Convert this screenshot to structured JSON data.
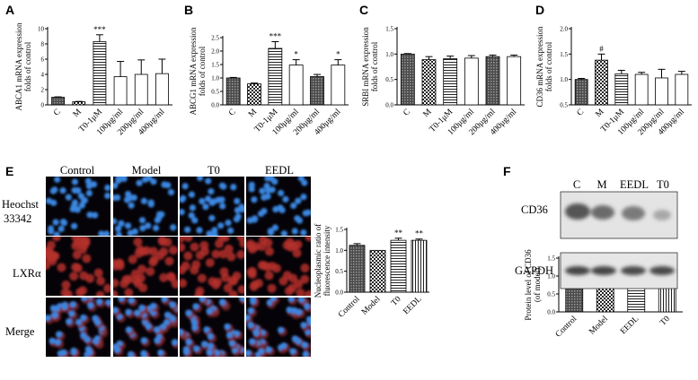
{
  "panels": {
    "A": "A",
    "B": "B",
    "C": "C",
    "D": "D",
    "E": "E",
    "F": "F"
  },
  "microscopy": {
    "columns": [
      "Control",
      "Model",
      "T0",
      "EEDL"
    ],
    "rows": [
      "Heochst\n33342",
      "LXRα",
      "Merge"
    ]
  },
  "western": {
    "lanes": [
      "C",
      "M",
      "EEDL",
      "T0"
    ],
    "bands": [
      "CD36",
      "GAPDH"
    ]
  },
  "chart_data": [
    {
      "id": "A",
      "type": "bar",
      "ylabel": [
        "ABCA1 mRNA expression",
        "folds of control"
      ],
      "categories": [
        "C",
        "M",
        "T0-1μM",
        "100μg/ml",
        "200μg/ml",
        "400μg/ml"
      ],
      "values": [
        1.0,
        0.4,
        8.3,
        3.7,
        4.0,
        4.1
      ],
      "errors": [
        0.05,
        0.05,
        0.9,
        2.0,
        1.9,
        1.9
      ],
      "annotations": [
        "",
        "",
        "***",
        "",
        "",
        ""
      ],
      "ylim": [
        0,
        10
      ],
      "yticks": [
        0,
        2,
        4,
        6,
        8,
        10
      ],
      "patterns": [
        "dense",
        "check",
        "hline",
        "white",
        "white",
        "white"
      ]
    },
    {
      "id": "B",
      "type": "bar",
      "ylabel": [
        "ABCG1 mRNA expression",
        "folds of control"
      ],
      "categories": [
        "C",
        "M",
        "T0-1μM",
        "100μg/ml",
        "200μg/ml",
        "400μg/ml"
      ],
      "values": [
        1.0,
        0.78,
        2.1,
        1.48,
        1.05,
        1.48
      ],
      "errors": [
        0.02,
        0.03,
        0.25,
        0.2,
        0.08,
        0.2
      ],
      "annotations": [
        "",
        "",
        "***",
        "*",
        "",
        "*"
      ],
      "ylim": [
        0,
        2.5
      ],
      "yticks": [
        0,
        0.5,
        1.0,
        1.5,
        2.0,
        2.5
      ],
      "patterns": [
        "dense",
        "check",
        "hline",
        "white",
        "dense",
        "white"
      ]
    },
    {
      "id": "C",
      "type": "bar",
      "ylabel": [
        "SRBI mRNA expression",
        "folds of control"
      ],
      "categories": [
        "C",
        "M",
        "T0-1μM",
        "100μg/ml",
        "200μg/ml",
        "400μg/ml"
      ],
      "values": [
        1.0,
        0.89,
        0.91,
        0.92,
        0.95,
        0.95
      ],
      "errors": [
        0.01,
        0.06,
        0.05,
        0.05,
        0.03,
        0.03
      ],
      "annotations": [
        "",
        "",
        "",
        "",
        "",
        ""
      ],
      "ylim": [
        0,
        1.5
      ],
      "yticks": [
        0.0,
        0.5,
        1.0,
        1.5
      ],
      "patterns": [
        "dense",
        "check",
        "hline",
        "white",
        "dense",
        "white"
      ]
    },
    {
      "id": "D",
      "type": "bar",
      "ylabel": [
        "CD36 mRNA expression",
        "folds of control"
      ],
      "categories": [
        "C",
        "M",
        "T0-1μM",
        "100μg/ml",
        "200μg/ml",
        "400μg/ml"
      ],
      "values": [
        1.0,
        1.38,
        1.11,
        1.1,
        1.03,
        1.1
      ],
      "errors": [
        0.02,
        0.12,
        0.07,
        0.04,
        0.17,
        0.06
      ],
      "annotations": [
        "",
        "#",
        "",
        "",
        "",
        ""
      ],
      "ylim": [
        0.5,
        2.0
      ],
      "yticks": [
        0.5,
        1.0,
        1.5,
        2.0
      ],
      "patterns": [
        "dense",
        "check",
        "hline",
        "white",
        "white",
        "white"
      ]
    },
    {
      "id": "E",
      "type": "bar",
      "ylabel": [
        "Nucleoplasmic ratio of",
        "fluorescence intensity"
      ],
      "categories": [
        "Control",
        "Model",
        "T0",
        "EEDL"
      ],
      "values": [
        1.12,
        1.0,
        1.24,
        1.24
      ],
      "errors": [
        0.04,
        0.0,
        0.05,
        0.03
      ],
      "annotations": [
        "",
        "",
        "**",
        "**"
      ],
      "ylim": [
        0,
        1.5
      ],
      "yticks": [
        0.0,
        0.5,
        1.0,
        1.5
      ],
      "patterns": [
        "dense",
        "check",
        "hline",
        "vline"
      ]
    },
    {
      "id": "F",
      "type": "bar",
      "ylabel": [
        "Protein level of CD36",
        "(of model)"
      ],
      "categories": [
        "Control",
        "Model",
        "EEDL",
        "T0"
      ],
      "values": [
        0.85,
        1.0,
        0.81,
        0.75
      ],
      "errors": [
        0.01,
        0.0,
        0.02,
        0.08
      ],
      "annotations": [
        "",
        "",
        "*",
        "**"
      ],
      "ylim": [
        0,
        1.5
      ],
      "yticks": [
        0.0,
        0.5,
        1.0,
        1.5
      ],
      "patterns": [
        "dense",
        "check",
        "hline",
        "vline"
      ]
    }
  ]
}
